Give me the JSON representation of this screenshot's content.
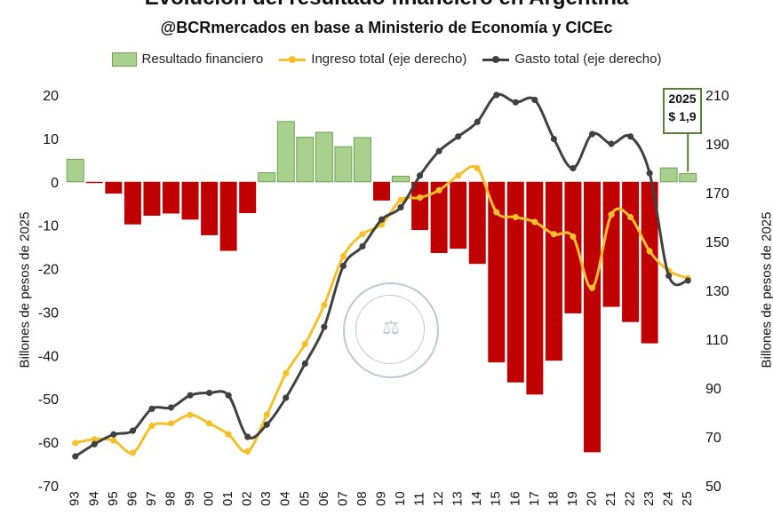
{
  "header": {
    "title": "Evolución del resultado financiero en Argentina",
    "subtitle": "@BCRmercados en base a Ministerio de Economía y CICEc"
  },
  "legend": {
    "bar_label": "Resultado financiero",
    "income_label": "Ingreso total (eje derecho)",
    "spending_label": "Gasto total (eje derecho)"
  },
  "callout": {
    "year": "2025",
    "value": "$ 1,9"
  },
  "watermark": {
    "text": "BOLSA DE COMERCIO DE ROSARIO"
  },
  "colors": {
    "positive_bar": "#a9d18e",
    "positive_bar_border": "#6f9f55",
    "negative_bar": "#c00000",
    "income_line": "#f5c02a",
    "spending_line": "#404040"
  },
  "chart_data": {
    "type": "bar",
    "title": "Evolución del resultado financiero en Argentina",
    "subtitle": "@BCRmercados en base a Ministerio de Economía y CICEc",
    "ylabel": "Billones de pesos de 2025",
    "ylabel_right": "Billones de pesos de 2025",
    "ylim": [
      -70,
      20
    ],
    "ylim_right": [
      50,
      210
    ],
    "yticks": [
      "20",
      "10",
      "0",
      "-10",
      "-20",
      "-30",
      "-40",
      "-50",
      "-60",
      "-70"
    ],
    "yticks_right": [
      "210",
      "190",
      "170",
      "150",
      "130",
      "110",
      "90",
      "70",
      "50"
    ],
    "categories": [
      "93",
      "94",
      "95",
      "96",
      "97",
      "98",
      "99",
      "00",
      "01",
      "02",
      "03",
      "04",
      "05",
      "06",
      "07",
      "08",
      "09",
      "10",
      "11",
      "12",
      "13",
      "14",
      "15",
      "16",
      "17",
      "18",
      "19",
      "20",
      "21",
      "22",
      "23",
      "24",
      "25"
    ],
    "legend_position": "top",
    "grid": false,
    "series": [
      {
        "name": "Resultado financiero",
        "type": "bar",
        "axis": "left",
        "values": [
          5.2,
          -0.3,
          -2.7,
          -9.8,
          -7.8,
          -7.3,
          -8.7,
          -12.3,
          -15.9,
          -7.2,
          2.1,
          13.9,
          10.3,
          11.4,
          8.1,
          10.2,
          -4.3,
          1.3,
          -11.1,
          -16.4,
          -15.4,
          -18.9,
          -41.6,
          -46.2,
          -49,
          -41.2,
          -30.3,
          -62.3,
          -28.8,
          -32.3,
          -37.2,
          3.2,
          1.9
        ]
      },
      {
        "name": "Ingreso total (eje derecho)",
        "type": "line",
        "axis": "right",
        "values": [
          67.5,
          69,
          68.5,
          63.5,
          74.5,
          75.5,
          79,
          75.5,
          71,
          64,
          79,
          96,
          108,
          124,
          144,
          153,
          157,
          167,
          168,
          171,
          177,
          180,
          162,
          160,
          158,
          153,
          152,
          131,
          161,
          160,
          146,
          138,
          135
        ]
      },
      {
        "name": "Gasto total (eje derecho)",
        "type": "line",
        "axis": "right",
        "values": [
          62,
          67,
          71,
          72.5,
          81.5,
          82,
          87,
          88,
          87,
          70,
          75,
          86,
          100,
          115,
          140,
          148,
          159,
          164,
          177,
          187,
          193,
          199,
          210,
          207,
          208,
          192,
          180,
          194,
          190,
          193,
          178,
          136,
          134
        ]
      }
    ]
  }
}
